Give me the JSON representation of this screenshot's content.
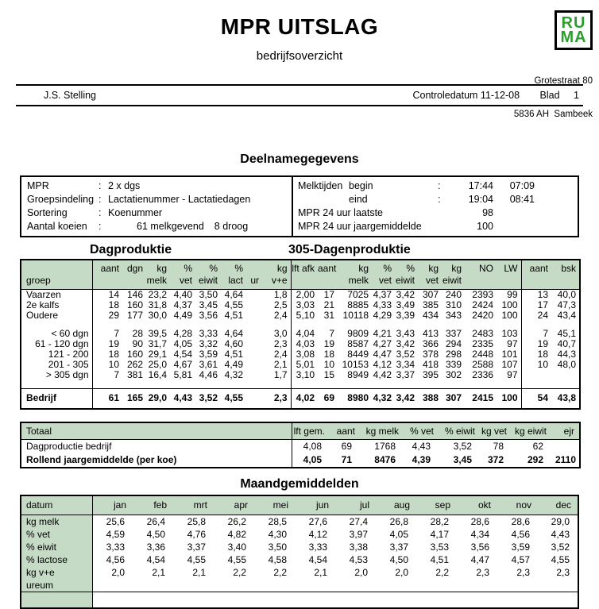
{
  "page": {
    "title": "MPR UITSLAG",
    "subtitle": "bedrijfsoverzicht",
    "logo_line1": "RU",
    "logo_line2": "MA",
    "address1": "Grotestraat 80",
    "address2": "5836 AH  Sambeek",
    "owner": "J.S. Stelling",
    "control_date": "Controledatum 11-12-08",
    "blad_label": "Blad",
    "blad_number": "1"
  },
  "colors": {
    "header_green": "#c6dbc6",
    "logo_green": "#2e9d30"
  },
  "deelname": {
    "heading": "Deelnamegegevens",
    "left": [
      {
        "label": "MPR",
        "colon": ":",
        "value": "2 x dgs",
        "value2": ""
      },
      {
        "label": "Groepsindeling",
        "colon": ":",
        "value": "Lactatienummer - Lactatiedagen",
        "value2": ""
      },
      {
        "label": "Sortering",
        "colon": ":",
        "value": "Koenummer",
        "value2": ""
      },
      {
        "label": "Aantal koeien",
        "colon": ":",
        "value": "61 melkgevend",
        "value2": "8 droog"
      }
    ],
    "right": {
      "melktijden_label": "Melktijden",
      "begin_label": "begin",
      "begin_colon": ":",
      "begin_t1": "17:44",
      "begin_t2": "07:09",
      "eind_label": "eind",
      "eind_colon": ":",
      "eind_t1": "19:04",
      "eind_t2": "08:41",
      "laatste_label": "MPR 24 uur laatste",
      "laatste_value": "98",
      "jaar_label": "MPR 24 uur jaargemiddelde",
      "jaar_value": "100"
    }
  },
  "production": {
    "left_heading": "Dagproduktie",
    "right_heading": "305-Dagenproduktie",
    "groep_header": "groep",
    "columns": [
      {
        "l1": "aant",
        "l2": ""
      },
      {
        "l1": "dgn",
        "l2": ""
      },
      {
        "l1": "kg",
        "l2": "melk"
      },
      {
        "l1": "%",
        "l2": "vet"
      },
      {
        "l1": "%",
        "l2": "eiwit"
      },
      {
        "l1": "%",
        "l2": "lact"
      },
      {
        "l1": "",
        "l2": "ur"
      },
      {
        "l1": "kg",
        "l2": "v+e"
      },
      {
        "l1": "lft afk",
        "l2": "",
        "sec": true
      },
      {
        "l1": "aant",
        "l2": ""
      },
      {
        "l1": "kg",
        "l2": "melk"
      },
      {
        "l1": "%",
        "l2": "vet"
      },
      {
        "l1": "%",
        "l2": "eiwit"
      },
      {
        "l1": "kg",
        "l2": "vet"
      },
      {
        "l1": "kg",
        "l2": "eiwit"
      },
      {
        "l1": "NO",
        "l2": ""
      },
      {
        "l1": "LW",
        "l2": ""
      },
      {
        "l1": "aant",
        "l2": "",
        "sec": true
      },
      {
        "l1": "bsk",
        "l2": ""
      }
    ],
    "rows": [
      {
        "groep": "Vaarzen",
        "align": "left",
        "bold": false,
        "gap_before": false,
        "values": [
          "14",
          "146",
          "23,2",
          "4,40",
          "3,50",
          "4,64",
          "",
          "1,8",
          "2,00",
          "17",
          "7025",
          "4,37",
          "3,42",
          "307",
          "240",
          "2393",
          "99",
          "13",
          "40,0"
        ]
      },
      {
        "groep": "2e kalfs",
        "align": "left",
        "bold": false,
        "gap_before": false,
        "values": [
          "18",
          "160",
          "31,8",
          "4,37",
          "3,45",
          "4,55",
          "",
          "2,5",
          "3,03",
          "21",
          "8885",
          "4,33",
          "3,49",
          "385",
          "310",
          "2424",
          "100",
          "17",
          "47,3"
        ]
      },
      {
        "groep": "Oudere",
        "align": "left",
        "bold": false,
        "gap_before": false,
        "values": [
          "29",
          "177",
          "30,0",
          "4,49",
          "3,56",
          "4,51",
          "",
          "2,4",
          "5,10",
          "31",
          "10118",
          "4,29",
          "3,39",
          "434",
          "343",
          "2420",
          "100",
          "24",
          "43,4"
        ]
      },
      {
        "groep": "< 60 dgn",
        "align": "right",
        "bold": false,
        "gap_before": true,
        "values": [
          "7",
          "28",
          "39,5",
          "4,28",
          "3,33",
          "4,64",
          "",
          "3,0",
          "4,04",
          "7",
          "9809",
          "4,21",
          "3,43",
          "413",
          "337",
          "2483",
          "103",
          "7",
          "45,1"
        ]
      },
      {
        "groep": "61 - 120 dgn",
        "align": "right",
        "bold": false,
        "gap_before": false,
        "values": [
          "19",
          "90",
          "31,7",
          "4,05",
          "3,32",
          "4,60",
          "",
          "2,3",
          "4,03",
          "19",
          "8587",
          "4,27",
          "3,42",
          "366",
          "294",
          "2335",
          "97",
          "19",
          "40,7"
        ]
      },
      {
        "groep": "121 - 200",
        "align": "right",
        "bold": false,
        "gap_before": false,
        "values": [
          "18",
          "160",
          "29,1",
          "4,54",
          "3,59",
          "4,51",
          "",
          "2,4",
          "3,08",
          "18",
          "8449",
          "4,47",
          "3,52",
          "378",
          "298",
          "2448",
          "101",
          "18",
          "44,3"
        ]
      },
      {
        "groep": "201 - 305",
        "align": "right",
        "bold": false,
        "gap_before": false,
        "values": [
          "10",
          "262",
          "25,0",
          "4,67",
          "3,61",
          "4,49",
          "",
          "2,1",
          "5,01",
          "10",
          "10153",
          "4,12",
          "3,34",
          "418",
          "339",
          "2588",
          "107",
          "10",
          "48,0"
        ]
      },
      {
        "groep": "> 305 dgn",
        "align": "right",
        "bold": false,
        "gap_before": false,
        "values": [
          "7",
          "381",
          "16,4",
          "5,81",
          "4,46",
          "4,32",
          "",
          "1,7",
          "3,10",
          "15",
          "8949",
          "4,42",
          "3,37",
          "395",
          "302",
          "2336",
          "97",
          "",
          ""
        ]
      },
      {
        "groep": "Bedrijf",
        "align": "left",
        "bold": true,
        "gap_before": true,
        "values": [
          "61",
          "165",
          "29,0",
          "4,43",
          "3,52",
          "4,55",
          "",
          "2,3",
          "4,02",
          "69",
          "8980",
          "4,32",
          "3,42",
          "388",
          "307",
          "2415",
          "100",
          "54",
          "43,8"
        ]
      }
    ]
  },
  "totaal": {
    "headers": [
      "Totaal",
      "lft gem.",
      "aant",
      "kg melk",
      "% vet",
      "% eiwit",
      "kg vet",
      "kg eiwit",
      "ejr"
    ],
    "rows": [
      {
        "label": "Dagproductie bedrijf",
        "bold": false,
        "values": [
          "4,08",
          "69",
          "1768",
          "4,43",
          "3,52",
          "78",
          "62",
          ""
        ]
      },
      {
        "label": "Rollend jaargemiddelde (per koe)",
        "bold": true,
        "values": [
          "4,05",
          "71",
          "8476",
          "4,39",
          "3,45",
          "372",
          "292",
          "2110"
        ]
      }
    ]
  },
  "maand": {
    "heading": "Maandgemiddelden",
    "label_header": "datum",
    "months": [
      "jan",
      "feb",
      "mrt",
      "apr",
      "mei",
      "jun",
      "jul",
      "aug",
      "sep",
      "okt",
      "nov",
      "dec"
    ],
    "rows": [
      {
        "label": "kg melk",
        "values": [
          "25,6",
          "26,4",
          "25,8",
          "26,2",
          "28,5",
          "27,6",
          "27,4",
          "26,8",
          "28,2",
          "28,6",
          "28,6",
          "29,0"
        ]
      },
      {
        "label": "% vet",
        "values": [
          "4,59",
          "4,50",
          "4,76",
          "4,82",
          "4,30",
          "4,12",
          "3,97",
          "4,05",
          "4,17",
          "4,34",
          "4,56",
          "4,43"
        ]
      },
      {
        "label": "% eiwit",
        "values": [
          "3,33",
          "3,36",
          "3,37",
          "3,40",
          "3,50",
          "3,33",
          "3,38",
          "3,37",
          "3,53",
          "3,56",
          "3,59",
          "3,52"
        ]
      },
      {
        "label": "% lactose",
        "values": [
          "4,56",
          "4,54",
          "4,55",
          "4,55",
          "4,58",
          "4,54",
          "4,53",
          "4,50",
          "4,51",
          "4,47",
          "4,57",
          "4,55"
        ]
      },
      {
        "label": "kg v+e",
        "values": [
          "2,0",
          "2,1",
          "2,1",
          "2,2",
          "2,2",
          "2,1",
          "2,0",
          "2,0",
          "2,2",
          "2,3",
          "2,3",
          "2,3"
        ]
      },
      {
        "label": "ureum",
        "values": [
          "",
          "",
          "",
          "",
          "",
          "",
          "",
          "",
          "",
          "",
          "",
          ""
        ]
      }
    ]
  }
}
